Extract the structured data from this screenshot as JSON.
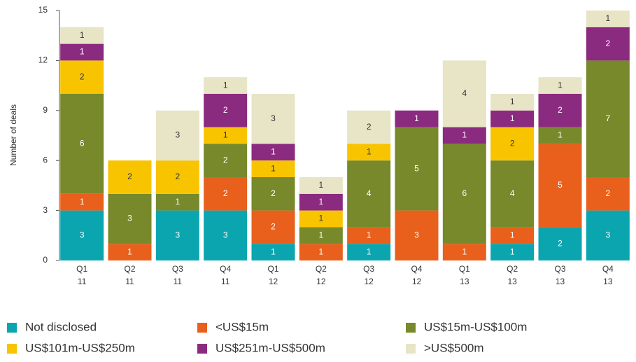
{
  "chart_data": {
    "type": "bar",
    "stacked": true,
    "y_label": "Number of deals",
    "categories": [
      "Q1 11",
      "Q2 11",
      "Q3 11",
      "Q4 11",
      "Q1 12",
      "Q2 12",
      "Q3 12",
      "Q4 12",
      "Q1 13",
      "Q2 13",
      "Q3 13",
      "Q4 13"
    ],
    "ylim": [
      0,
      15
    ],
    "yticks": [
      0,
      3,
      6,
      9,
      12,
      15
    ],
    "series": [
      {
        "name": "Not disclosed",
        "color": "#0ba5b0",
        "values": [
          3,
          null,
          3,
          3,
          1,
          null,
          1,
          null,
          null,
          1,
          2,
          3
        ]
      },
      {
        "name": "<US$15m",
        "color": "#e8601c",
        "values": [
          1,
          1,
          null,
          2,
          2,
          1,
          1,
          3,
          1,
          1,
          5,
          2
        ]
      },
      {
        "name": "US$15m-US$100m",
        "color": "#77892b",
        "values": [
          6,
          3,
          1,
          2,
          2,
          1,
          4,
          5,
          6,
          4,
          1,
          7
        ]
      },
      {
        "name": "US$101m-US$250m",
        "color": "#f8c400",
        "values": [
          2,
          2,
          2,
          1,
          1,
          1,
          1,
          null,
          null,
          2,
          null,
          null
        ]
      },
      {
        "name": "US$251m-US$500m",
        "color": "#8b2b7f",
        "values": [
          1,
          null,
          null,
          2,
          1,
          1,
          null,
          1,
          1,
          1,
          2,
          2
        ]
      },
      {
        "name": ">US$500m",
        "color": "#e8e4c6",
        "values": [
          1,
          null,
          3,
          1,
          3,
          1,
          2,
          null,
          4,
          1,
          1,
          1
        ]
      }
    ]
  }
}
